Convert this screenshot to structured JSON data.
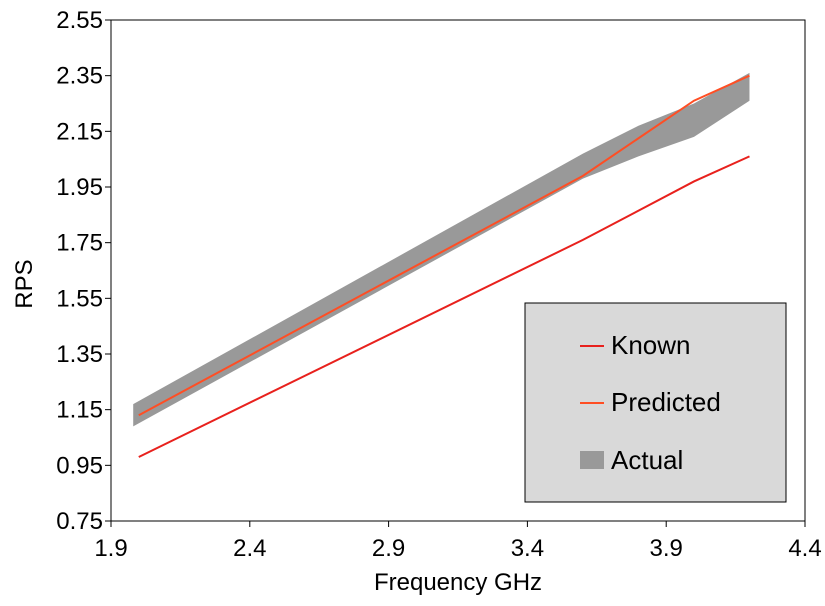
{
  "chart_data": {
    "type": "line",
    "title": "",
    "xlabel": "Frequency GHz",
    "ylabel": "RPS",
    "xlim": [
      1.9,
      4.4
    ],
    "ylim": [
      0.75,
      2.55
    ],
    "xticks": [
      "1.9",
      "2.4",
      "2.9",
      "3.4",
      "3.9",
      "4.4"
    ],
    "yticks": [
      "0.75",
      "0.95",
      "1.15",
      "1.35",
      "1.55",
      "1.75",
      "1.95",
      "2.15",
      "2.35",
      "2.55"
    ],
    "grid": false,
    "legend_position": "bottom-right",
    "series": [
      {
        "name": "Known",
        "kind": "line",
        "color": "#e8211d",
        "x": [
          2.0,
          3.6,
          4.0,
          4.2
        ],
        "y": [
          0.98,
          1.76,
          1.97,
          2.06
        ]
      },
      {
        "name": "Predicted",
        "kind": "line",
        "color": "#ff4e24",
        "x": [
          2.0,
          3.6,
          4.0,
          4.2
        ],
        "y": [
          1.13,
          1.99,
          2.26,
          2.35
        ]
      },
      {
        "name": "Actual",
        "kind": "band",
        "color": "#999999",
        "x": [
          1.98,
          3.6,
          3.8,
          4.0,
          4.2
        ],
        "upper": [
          1.17,
          2.07,
          2.17,
          2.25,
          2.36
        ],
        "lower": [
          1.09,
          1.98,
          2.06,
          2.13,
          2.26
        ]
      }
    ]
  }
}
